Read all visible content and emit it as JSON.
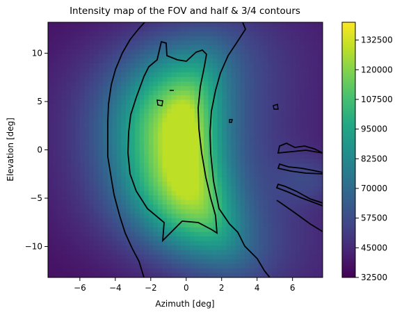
{
  "chart_data": {
    "type": "heatmap",
    "title": "Intensity map of the FOV and half & 3/4 contours",
    "xlabel": "Azimuth [deg]",
    "ylabel": "Elevation [deg]",
    "xlim": [
      -7.8,
      7.7
    ],
    "ylim": [
      -13.2,
      13.2
    ],
    "x_ticks": [
      -6,
      -4,
      -2,
      0,
      2,
      4,
      6
    ],
    "y_ticks": [
      -10,
      -5,
      0,
      5,
      10
    ],
    "x_tick_labels": [
      "−6",
      "−4",
      "−2",
      "0",
      "2",
      "4",
      "6"
    ],
    "y_tick_labels": [
      "−10",
      "−5",
      "0",
      "5",
      "10"
    ],
    "colormap": "viridis",
    "colorbar": {
      "min": 32500,
      "max": 140000,
      "ticks": [
        32500,
        45000,
        57500,
        70000,
        82500,
        95000,
        107500,
        120000,
        132500
      ],
      "tick_labels": [
        "32500",
        "45000",
        "57500",
        "70000",
        "82500",
        "95000",
        "107500",
        "120000",
        "132500"
      ]
    },
    "contour_levels": [
      "half",
      "3/4"
    ],
    "contour_color": "#000000",
    "peak": {
      "azimuth": -0.2,
      "elevation": 0.5,
      "intensity": 138000
    },
    "minimum_intensity": 32500
  }
}
